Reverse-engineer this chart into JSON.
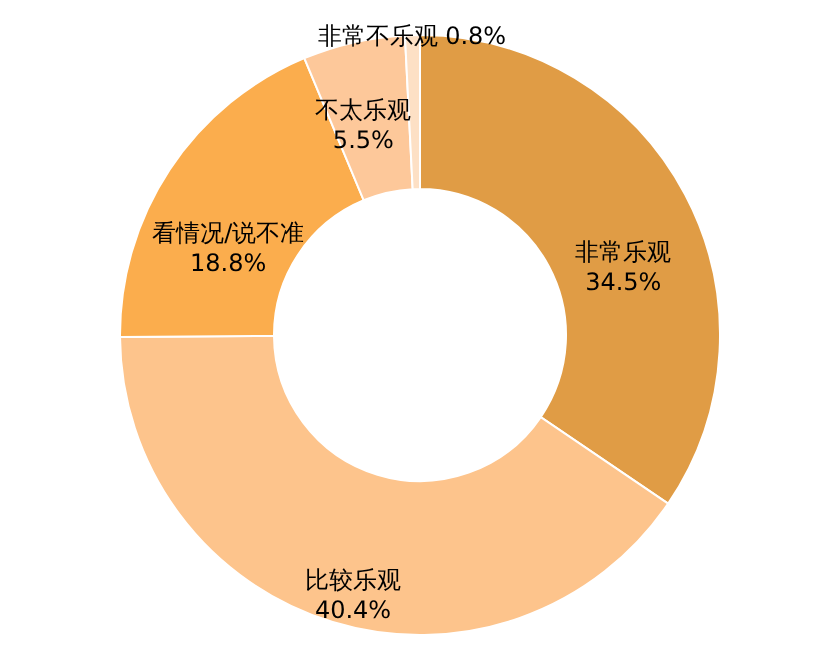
{
  "chart_data": {
    "type": "donut",
    "categories": [
      "非常乐观",
      "比较乐观",
      "看情况/说不准",
      "不太乐观",
      "非常不乐观"
    ],
    "values": [
      34.5,
      40.4,
      18.8,
      5.5,
      0.8
    ],
    "colors": [
      "#e09c45",
      "#fdc48c",
      "#fbad4d",
      "#fdc89a",
      "#fde0c5"
    ],
    "value_labels": [
      "34.5%",
      "40.4%",
      "18.8%",
      "5.5%",
      "0.8%"
    ]
  }
}
